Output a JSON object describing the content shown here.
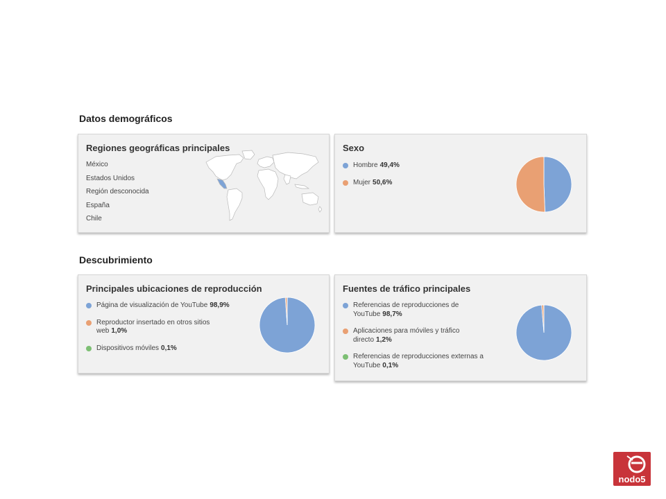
{
  "demographics": {
    "title": "Datos demográficos",
    "regions": {
      "title": "Regiones geográficas principales",
      "items": [
        "México",
        "Estados Unidos",
        "Región desconocida",
        "España",
        "Chile"
      ]
    },
    "gender": {
      "title": "Sexo",
      "items": [
        {
          "label": "Hombre",
          "value": "49,4%",
          "color": "#7da3d6"
        },
        {
          "label": "Mujer",
          "value": "50,6%",
          "color": "#e9a073"
        }
      ]
    }
  },
  "discovery": {
    "title": "Descubrimiento",
    "locations": {
      "title": "Principales ubicaciones de reproducción",
      "items": [
        {
          "label": "Página de visualización de YouTube",
          "value": "98,9%",
          "color": "#7da3d6"
        },
        {
          "label": "Reproductor insertado en otros sitios web",
          "value": "1,0%",
          "color": "#e9a073"
        },
        {
          "label": "Dispositivos móviles",
          "value": "0,1%",
          "color": "#7dbf74"
        }
      ]
    },
    "traffic": {
      "title": "Fuentes de tráfico principales",
      "items": [
        {
          "label": "Referencias de reproducciones de YouTube",
          "value": "98,7%",
          "color": "#7da3d6"
        },
        {
          "label": "Aplicaciones para móviles y tráfico directo",
          "value": "1,2%",
          "color": "#e9a073"
        },
        {
          "label": "Referencias de reproducciones externas a YouTube",
          "value": "0,1%",
          "color": "#7dbf74"
        }
      ]
    }
  },
  "chart_data": [
    {
      "type": "pie",
      "categories": [
        "Hombre",
        "Mujer"
      ],
      "values": [
        49.4,
        50.6
      ]
    },
    {
      "type": "pie",
      "categories": [
        "Página de visualización de YouTube",
        "Reproductor insertado en otros sitios web",
        "Dispositivos móviles"
      ],
      "values": [
        98.9,
        1.0,
        0.1
      ]
    },
    {
      "type": "pie",
      "categories": [
        "Referencias de reproducciones de YouTube",
        "Aplicaciones para móviles y tráfico directo",
        "Referencias de reproducciones externas a YouTube"
      ],
      "values": [
        98.7,
        1.2,
        0.1
      ]
    }
  ],
  "logo": {
    "text": "nodo5",
    "color": "#c8343a"
  }
}
